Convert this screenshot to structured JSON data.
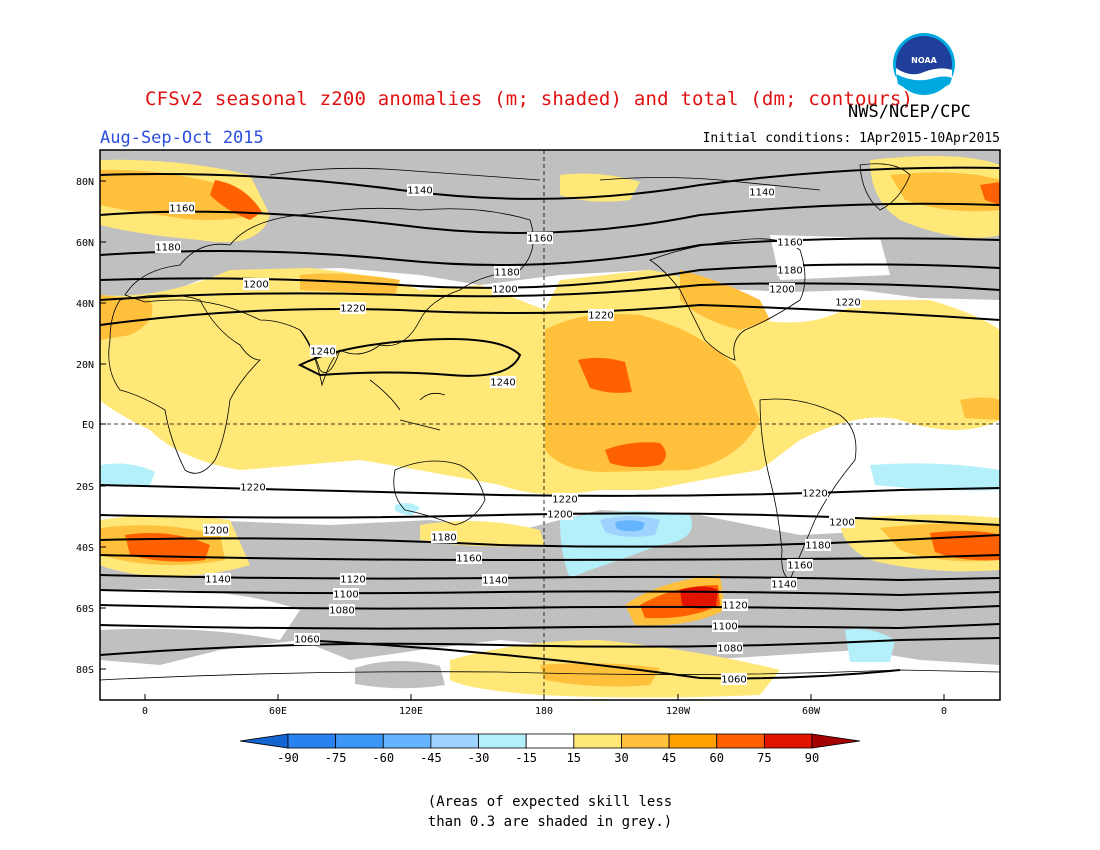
{
  "header": {
    "title": "CFSv2 seasonal z200 anomalies (m; shaded) and total (dm; contours)",
    "agency": "NWS/NCEP/CPC",
    "season": "Aug-Sep-Oct 2015",
    "initial_conditions": "Initial conditions: 1Apr2015-10Apr2015",
    "logo_text": "NOAA"
  },
  "map": {
    "lat_labels": [
      "80N",
      "60N",
      "40N",
      "20N",
      "EQ",
      "20S",
      "40S",
      "60S",
      "80S"
    ],
    "lon_labels": [
      "0",
      "60E",
      "120E",
      "180",
      "120W",
      "60W",
      "0"
    ],
    "contour_labels": [
      "1140",
      "1140",
      "1160",
      "1160",
      "1160",
      "1180",
      "1180",
      "1180",
      "1200",
      "1200",
      "1200",
      "1220",
      "1220",
      "1220",
      "1240",
      "1240",
      "1220",
      "1220",
      "1220",
      "1200",
      "1200",
      "1200",
      "1180",
      "1180",
      "1160",
      "1160",
      "1140",
      "1140",
      "1140",
      "1120",
      "1120",
      "1100",
      "1100",
      "1080",
      "1080",
      "1060",
      "1060"
    ]
  },
  "colorbar": {
    "ticks": [
      "-90",
      "-75",
      "-60",
      "-45",
      "-30",
      "-15",
      "15",
      "30",
      "45",
      "60",
      "75",
      "90"
    ],
    "colors": [
      "#1464d2",
      "#2882f0",
      "#3c96f5",
      "#64b4ff",
      "#a0d2ff",
      "#b4f0fa",
      "#ffffff",
      "#ffe878",
      "#ffc03c",
      "#ffa000",
      "#ff6000",
      "#e11400",
      "#a50000"
    ]
  },
  "colors": {
    "skill_grey": "#c0c0c0",
    "title_red": "#e01010",
    "season_blue": "#2a4de0"
  },
  "footnote": {
    "line1": "(Areas of expected skill less",
    "line2": "than 0.3 are shaded in grey.)"
  }
}
